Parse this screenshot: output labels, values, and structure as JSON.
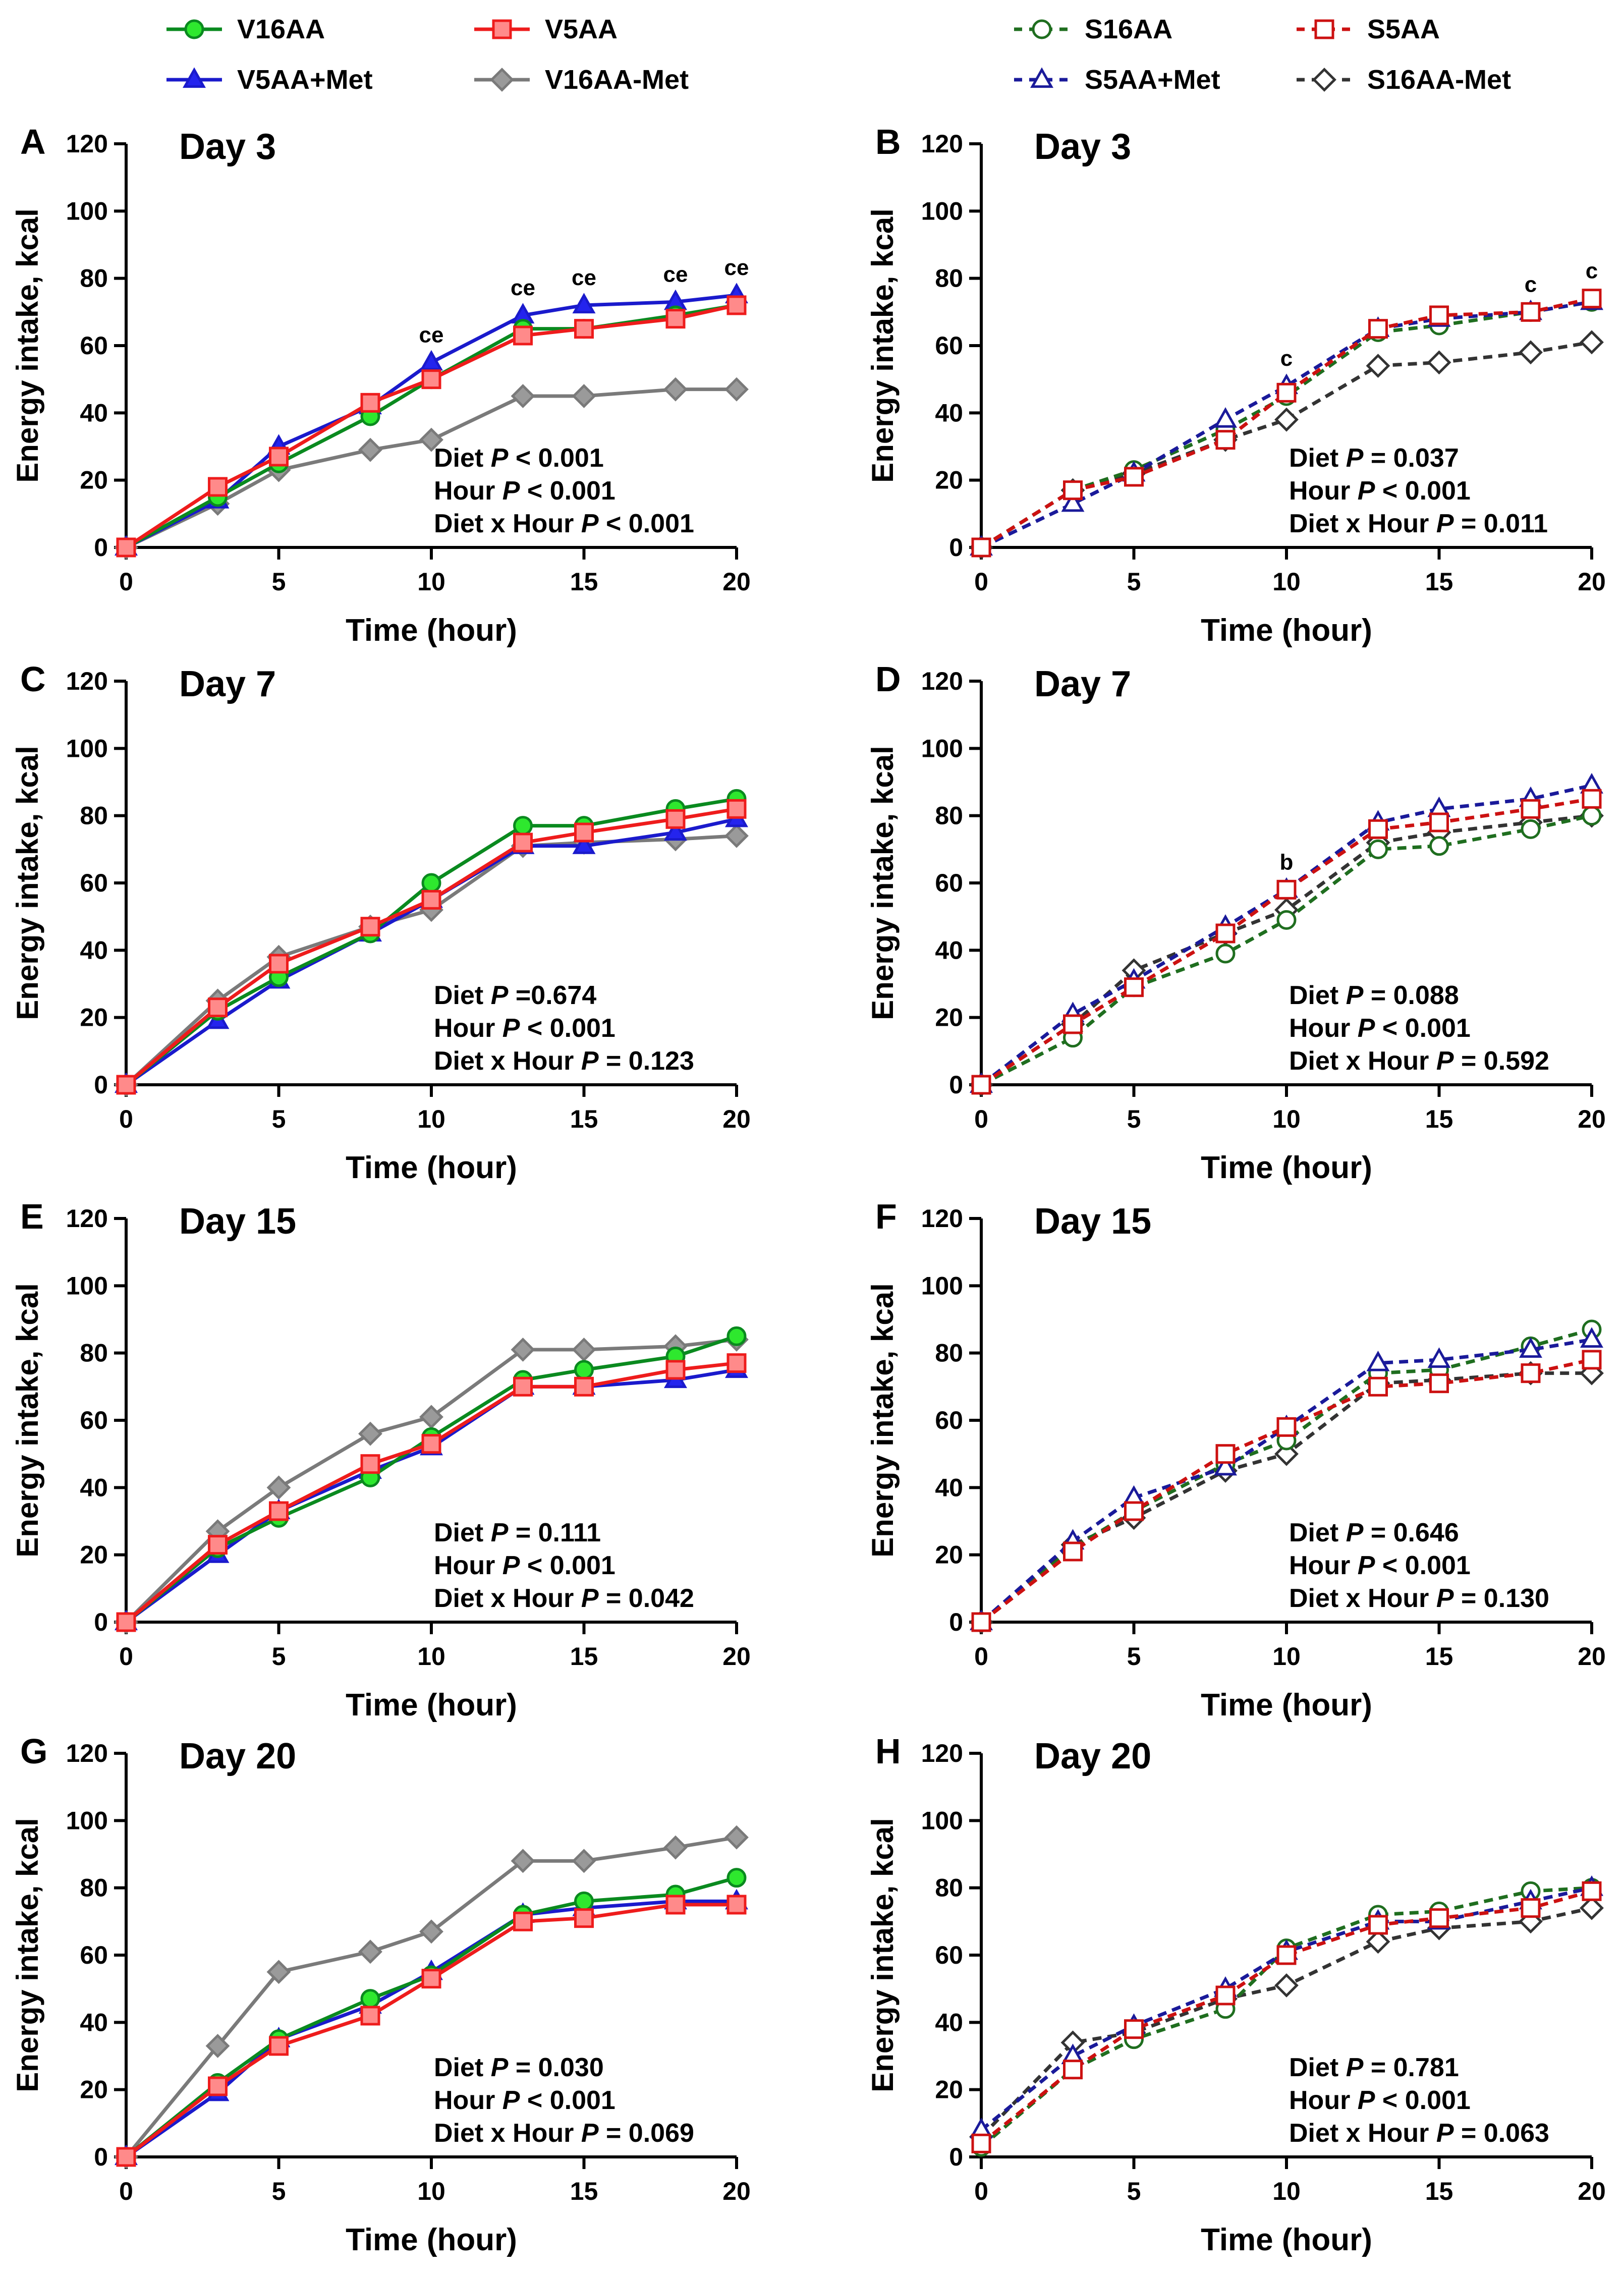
{
  "legend_left": [
    {
      "key": "V16AA",
      "label": "V16AA"
    },
    {
      "key": "V5AA",
      "label": "V5AA"
    },
    {
      "key": "V5AAMet",
      "label": "V5AA+Met"
    },
    {
      "key": "V16AAMet",
      "label": "V16AA-Met"
    }
  ],
  "legend_right": [
    {
      "key": "S16AA",
      "label": "S16AA"
    },
    {
      "key": "S5AA",
      "label": "S5AA"
    },
    {
      "key": "S5AAMet",
      "label": "S5AA+Met"
    },
    {
      "key": "S16AAMet",
      "label": "S16AA-Met"
    }
  ],
  "colors": {
    "green_stroke": "#0a8a1f",
    "green_fill": "#2ee82e",
    "red_stroke": "#ee1c1c",
    "red_fill": "#ff8a8a",
    "blue_stroke": "#1a1acc",
    "blue_fill": "#2424ee",
    "gray_stroke": "#7a7a7a",
    "gray_fill": "#9a9a9a",
    "dgreen": "#1f6e1f",
    "dred": "#cc1111",
    "dblue": "#1a1a9a",
    "dgray": "#333333"
  },
  "chart_data": [
    {
      "panel": "A",
      "title": "Day 3",
      "type": "line",
      "xlabel": "Time (hour)",
      "ylabel": "Energy intake, kcal",
      "xlim": [
        0,
        20
      ],
      "ylim": [
        0,
        120
      ],
      "xticks": [
        0,
        5,
        10,
        15,
        20
      ],
      "yticks": [
        0,
        20,
        40,
        60,
        80,
        100,
        120
      ],
      "x": [
        0,
        3,
        5,
        8,
        10,
        13,
        15,
        18,
        20
      ],
      "series": [
        {
          "key": "V16AA",
          "name": "V16AA",
          "values": [
            0,
            15,
            25,
            39,
            50,
            65,
            65,
            69,
            72
          ]
        },
        {
          "key": "V5AA",
          "name": "V5AA",
          "values": [
            0,
            18,
            27,
            43,
            50,
            63,
            65,
            68,
            72
          ]
        },
        {
          "key": "V5AAMet",
          "name": "V5AA+Met",
          "values": [
            0,
            14,
            30,
            42,
            55,
            69,
            72,
            73,
            75
          ]
        },
        {
          "key": "V16AAMet",
          "name": "V16AA-Met",
          "values": [
            0,
            13,
            23,
            29,
            32,
            45,
            45,
            47,
            47
          ]
        }
      ],
      "annotations": [
        {
          "x": 10,
          "text": "ce"
        },
        {
          "x": 13,
          "text": "ce"
        },
        {
          "x": 15,
          "text": "ce"
        },
        {
          "x": 18,
          "text": "ce"
        },
        {
          "x": 20,
          "text": "ce"
        }
      ],
      "stats": [
        "Diet P < 0.001",
        "Hour P < 0.001",
        "Diet x Hour P < 0.001"
      ]
    },
    {
      "panel": "B",
      "title": "Day 3",
      "type": "line",
      "xlabel": "Time (hour)",
      "ylabel": "Energy intake, kcal",
      "xlim": [
        0,
        20
      ],
      "ylim": [
        0,
        120
      ],
      "xticks": [
        0,
        5,
        10,
        15,
        20
      ],
      "yticks": [
        0,
        20,
        40,
        60,
        80,
        100,
        120
      ],
      "x": [
        0,
        3,
        5,
        8,
        10,
        13,
        15,
        18,
        20
      ],
      "series": [
        {
          "key": "S16AA",
          "name": "S16AA",
          "values": [
            0,
            17,
            23,
            35,
            45,
            64,
            66,
            70,
            73
          ]
        },
        {
          "key": "S5AA",
          "name": "S5AA",
          "values": [
            0,
            17,
            21,
            32,
            46,
            65,
            69,
            70,
            74
          ]
        },
        {
          "key": "S5AAMet",
          "name": "S5AA+Met",
          "values": [
            0,
            13,
            22,
            38,
            48,
            65,
            68,
            70,
            73
          ]
        },
        {
          "key": "S16AAMet",
          "name": "S16AA-Met",
          "values": [
            0,
            17,
            22,
            32,
            38,
            54,
            55,
            58,
            61
          ]
        }
      ],
      "annotations": [
        {
          "x": 10,
          "text": "c"
        },
        {
          "x": 18,
          "text": "c"
        },
        {
          "x": 20,
          "text": "c"
        }
      ],
      "stats": [
        "Diet P = 0.037",
        "Hour P < 0.001",
        "Diet x Hour P = 0.011"
      ]
    },
    {
      "panel": "C",
      "title": "Day 7",
      "type": "line",
      "xlabel": "Time (hour)",
      "ylabel": "Energy intake, kcal",
      "xlim": [
        0,
        20
      ],
      "ylim": [
        0,
        120
      ],
      "xticks": [
        0,
        5,
        10,
        15,
        20
      ],
      "yticks": [
        0,
        20,
        40,
        60,
        80,
        100,
        120
      ],
      "x": [
        0,
        3,
        5,
        8,
        10,
        13,
        15,
        18,
        20
      ],
      "series": [
        {
          "key": "V16AA",
          "name": "V16AA",
          "values": [
            0,
            22,
            32,
            45,
            60,
            77,
            77,
            82,
            85
          ]
        },
        {
          "key": "V5AA",
          "name": "V5AA",
          "values": [
            0,
            23,
            36,
            47,
            55,
            72,
            75,
            79,
            82
          ]
        },
        {
          "key": "V5AAMet",
          "name": "V5AA+Met",
          "values": [
            0,
            19,
            31,
            45,
            55,
            71,
            71,
            75,
            79
          ]
        },
        {
          "key": "V16AAMet",
          "name": "V16AA-Met",
          "values": [
            0,
            25,
            38,
            47,
            52,
            71,
            72,
            73,
            74
          ]
        }
      ],
      "annotations": [],
      "stats": [
        "Diet P =0.674",
        "Hour P < 0.001",
        "Diet x Hour P = 0.123"
      ]
    },
    {
      "panel": "D",
      "title": "Day 7",
      "type": "line",
      "xlabel": "Time (hour)",
      "ylabel": "Energy intake, kcal",
      "xlim": [
        0,
        20
      ],
      "ylim": [
        0,
        120
      ],
      "xticks": [
        0,
        5,
        10,
        15,
        20
      ],
      "yticks": [
        0,
        20,
        40,
        60,
        80,
        100,
        120
      ],
      "x": [
        0,
        3,
        5,
        8,
        10,
        13,
        15,
        18,
        20
      ],
      "series": [
        {
          "key": "S16AA",
          "name": "S16AA",
          "values": [
            0,
            14,
            29,
            39,
            49,
            70,
            71,
            76,
            80
          ]
        },
        {
          "key": "S5AA",
          "name": "S5AA",
          "values": [
            0,
            18,
            29,
            45,
            58,
            76,
            78,
            82,
            85
          ]
        },
        {
          "key": "S5AAMet",
          "name": "S5AA+Met",
          "values": [
            0,
            21,
            31,
            47,
            58,
            78,
            82,
            85,
            89
          ]
        },
        {
          "key": "S16AAMet",
          "name": "S16AA-Met",
          "values": [
            0,
            18,
            34,
            45,
            52,
            72,
            75,
            78,
            80
          ]
        }
      ],
      "annotations": [
        {
          "x": 10,
          "text": "b"
        }
      ],
      "stats": [
        "Diet P = 0.088",
        "Hour P < 0.001",
        "Diet x Hour P = 0.592"
      ]
    },
    {
      "panel": "E",
      "title": "Day 15",
      "type": "line",
      "xlabel": "Time (hour)",
      "ylabel": "Energy intake, kcal",
      "xlim": [
        0,
        20
      ],
      "ylim": [
        0,
        120
      ],
      "xticks": [
        0,
        5,
        10,
        15,
        20
      ],
      "yticks": [
        0,
        20,
        40,
        60,
        80,
        100,
        120
      ],
      "x": [
        0,
        3,
        5,
        8,
        10,
        13,
        15,
        18,
        20
      ],
      "series": [
        {
          "key": "V16AA",
          "name": "V16AA",
          "values": [
            0,
            22,
            31,
            43,
            55,
            72,
            75,
            79,
            85
          ]
        },
        {
          "key": "V5AA",
          "name": "V5AA",
          "values": [
            0,
            23,
            33,
            47,
            53,
            70,
            70,
            75,
            77
          ]
        },
        {
          "key": "V5AAMet",
          "name": "V5AA+Met",
          "values": [
            0,
            20,
            33,
            45,
            52,
            70,
            70,
            72,
            75
          ]
        },
        {
          "key": "V16AAMet",
          "name": "V16AA-Met",
          "values": [
            0,
            27,
            40,
            56,
            61,
            81,
            81,
            82,
            84
          ]
        }
      ],
      "annotations": [],
      "stats": [
        "Diet P = 0.111",
        "Hour P < 0.001",
        "Diet x Hour P = 0.042"
      ]
    },
    {
      "panel": "F",
      "title": "Day 15",
      "type": "line",
      "xlabel": "Time (hour)",
      "ylabel": "Energy intake, kcal",
      "xlim": [
        0,
        20
      ],
      "ylim": [
        0,
        120
      ],
      "xticks": [
        0,
        5,
        10,
        15,
        20
      ],
      "yticks": [
        0,
        20,
        40,
        60,
        80,
        100,
        120
      ],
      "x": [
        0,
        3,
        5,
        8,
        10,
        13,
        15,
        18,
        20
      ],
      "series": [
        {
          "key": "S16AA",
          "name": "S16AA",
          "values": [
            0,
            22,
            33,
            47,
            54,
            74,
            75,
            82,
            87
          ]
        },
        {
          "key": "S5AA",
          "name": "S5AA",
          "values": [
            0,
            21,
            33,
            50,
            58,
            70,
            71,
            74,
            78
          ]
        },
        {
          "key": "S5AAMet",
          "name": "S5AA+Met",
          "values": [
            0,
            24,
            37,
            46,
            58,
            77,
            78,
            81,
            84
          ]
        },
        {
          "key": "S16AAMet",
          "name": "S16AA-Met",
          "values": [
            0,
            23,
            31,
            45,
            50,
            71,
            72,
            74,
            74
          ]
        }
      ],
      "annotations": [],
      "stats": [
        "Diet P = 0.646",
        "Hour P < 0.001",
        "Diet x Hour P = 0.130"
      ]
    },
    {
      "panel": "G",
      "title": "Day 20",
      "type": "line",
      "xlabel": "Time (hour)",
      "ylabel": "Energy intake, kcal",
      "xlim": [
        0,
        20
      ],
      "ylim": [
        0,
        120
      ],
      "xticks": [
        0,
        5,
        10,
        15,
        20
      ],
      "yticks": [
        0,
        20,
        40,
        60,
        80,
        100,
        120
      ],
      "x": [
        0,
        3,
        5,
        8,
        10,
        13,
        15,
        18,
        20
      ],
      "series": [
        {
          "key": "V16AA",
          "name": "V16AA",
          "values": [
            0,
            22,
            35,
            47,
            54,
            72,
            76,
            78,
            83
          ]
        },
        {
          "key": "V5AA",
          "name": "V5AA",
          "values": [
            0,
            21,
            33,
            42,
            53,
            70,
            71,
            75,
            75
          ]
        },
        {
          "key": "V5AAMet",
          "name": "V5AA+Met",
          "values": [
            0,
            19,
            35,
            45,
            55,
            72,
            74,
            76,
            76
          ]
        },
        {
          "key": "V16AAMet",
          "name": "V16AA-Met",
          "values": [
            0,
            33,
            55,
            61,
            67,
            88,
            88,
            92,
            95
          ]
        }
      ],
      "annotations": [],
      "stats": [
        "Diet P = 0.030",
        "Hour P < 0.001",
        "Diet x Hour P = 0.069"
      ]
    },
    {
      "panel": "H",
      "title": "Day 20",
      "type": "line",
      "xlabel": "Time (hour)",
      "ylabel": "Energy intake, kcal",
      "xlim": [
        0,
        20
      ],
      "ylim": [
        0,
        120
      ],
      "xticks": [
        0,
        5,
        10,
        15,
        20
      ],
      "yticks": [
        0,
        20,
        40,
        60,
        80,
        100,
        120
      ],
      "x": [
        0,
        3,
        5,
        8,
        10,
        13,
        15,
        18,
        20
      ],
      "series": [
        {
          "key": "S16AA",
          "name": "S16AA",
          "values": [
            3,
            26,
            35,
            44,
            62,
            72,
            73,
            79,
            80
          ]
        },
        {
          "key": "S5AA",
          "name": "S5AA",
          "values": [
            4,
            26,
            38,
            48,
            60,
            69,
            71,
            74,
            79
          ]
        },
        {
          "key": "S5AAMet",
          "name": "S5AA+Met",
          "values": [
            8,
            30,
            39,
            50,
            61,
            70,
            70,
            76,
            80
          ]
        },
        {
          "key": "S16AAMet",
          "name": "S16AA-Met",
          "values": [
            6,
            34,
            37,
            47,
            51,
            64,
            68,
            70,
            74
          ]
        }
      ],
      "annotations": [],
      "stats": [
        "Diet P = 0.781",
        "Hour P < 0.001",
        "Diet x Hour P = 0.063"
      ]
    }
  ]
}
